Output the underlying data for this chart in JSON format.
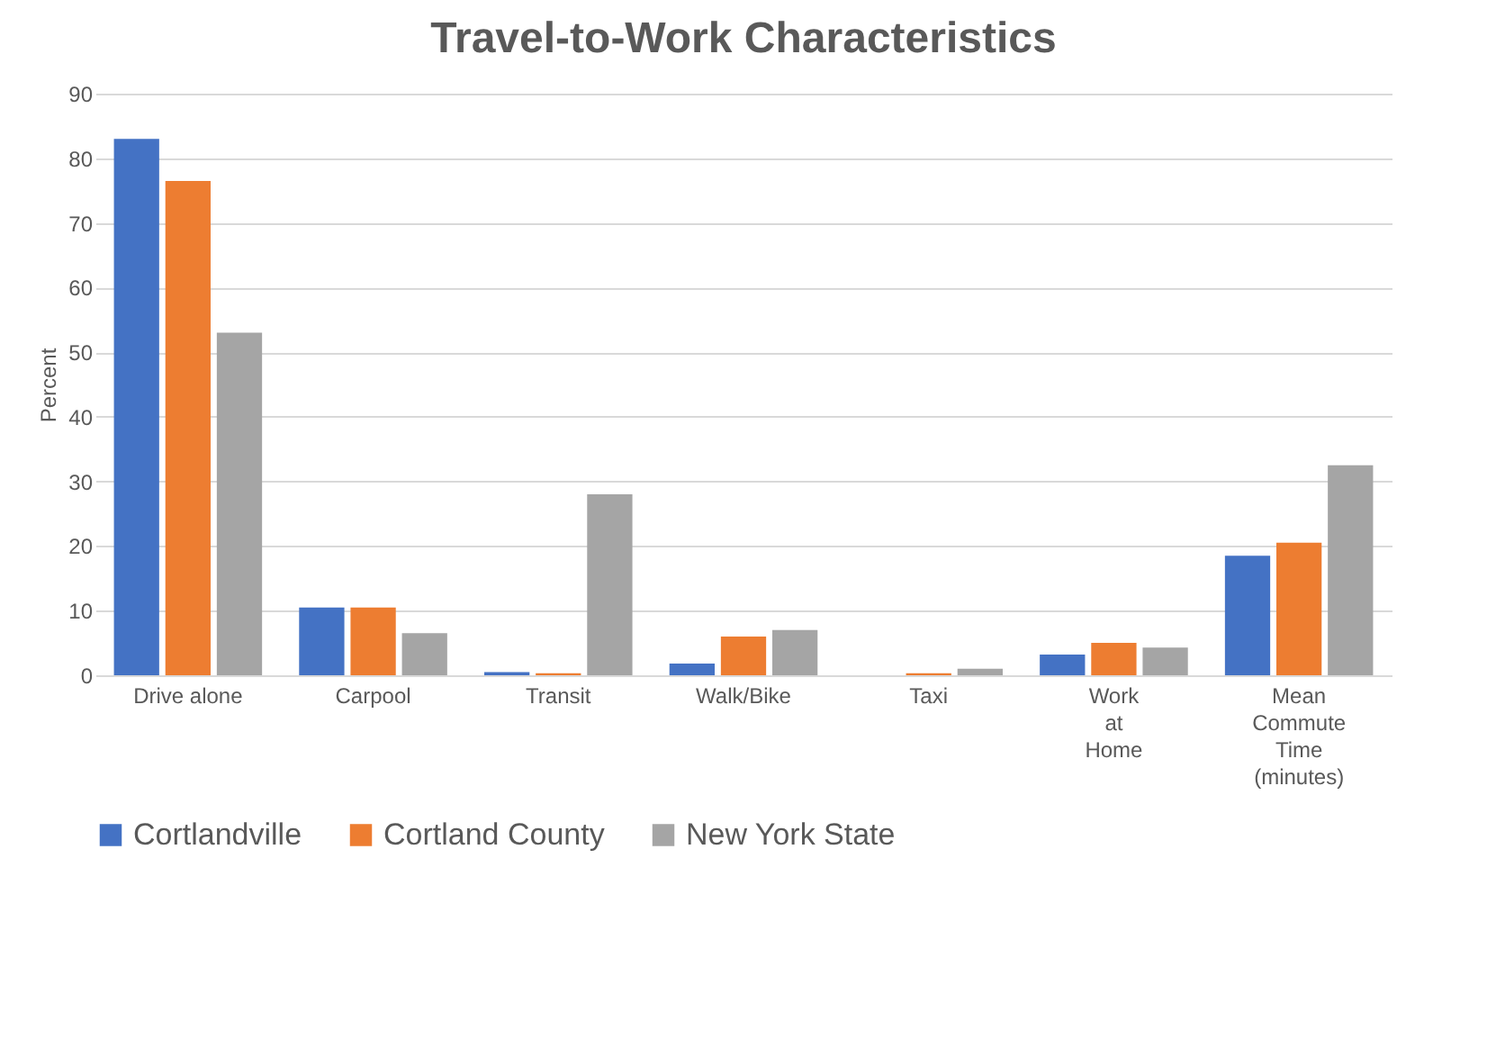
{
  "chart_data": {
    "type": "bar",
    "title": "Travel-to-Work Characteristics",
    "ylabel": "Percent",
    "categories": [
      "Drive alone",
      "Carpool",
      "Transit",
      "Walk/Bike",
      "Taxi",
      "Work at Home",
      "Mean Commute Time (minutes)"
    ],
    "series": [
      {
        "name": "Cortlandville",
        "color": "#4472c4",
        "values": [
          83,
          10.5,
          0.5,
          1.8,
          0,
          3.2,
          18.5
        ]
      },
      {
        "name": "Cortland County",
        "color": "#ed7d31",
        "values": [
          76.5,
          10.5,
          0.3,
          6,
          0.3,
          5,
          20.5
        ]
      },
      {
        "name": "New York State",
        "color": "#a5a5a5",
        "values": [
          53,
          6.5,
          28,
          7,
          1,
          4.3,
          32.5
        ]
      }
    ],
    "ylim": [
      0,
      90
    ],
    "yticks": [
      0,
      10,
      20,
      30,
      40,
      50,
      60,
      70,
      80,
      90
    ],
    "grid": "y",
    "legend": "bottom"
  }
}
